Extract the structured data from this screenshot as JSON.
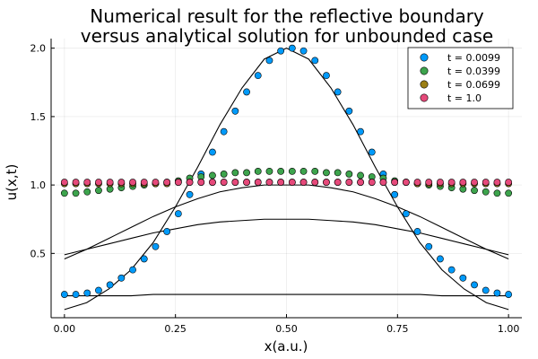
{
  "chart_data": {
    "type": "scatter",
    "title": "Numerical result for the reflective boundary\n versus analytical solution for unbounded case",
    "xlabel": "x(a.u.)",
    "ylabel": "u(x,t)",
    "xlim": [
      -0.03,
      1.03
    ],
    "ylim": [
      0.03,
      2.07
    ],
    "xticks": [
      0.0,
      0.25,
      0.5,
      0.75,
      1.0
    ],
    "xtick_labels": [
      "0.00",
      "0.25",
      "0.50",
      "0.75",
      "1.00"
    ],
    "yticks": [
      0.5,
      1.0,
      1.5,
      2.0
    ],
    "ytick_labels": [
      "0.5",
      "1.0",
      "1.5",
      "2.0"
    ],
    "grid": true,
    "legend_position": "top-right",
    "x": [
      0.0,
      0.02564,
      0.05128,
      0.07692,
      0.10256,
      0.12821,
      0.15385,
      0.17949,
      0.20513,
      0.23077,
      0.25641,
      0.28205,
      0.30769,
      0.33333,
      0.35897,
      0.38462,
      0.41026,
      0.4359,
      0.46154,
      0.48718,
      0.51282,
      0.53846,
      0.5641,
      0.58974,
      0.61538,
      0.64103,
      0.66667,
      0.69231,
      0.71795,
      0.74359,
      0.76923,
      0.79487,
      0.82051,
      0.84615,
      0.87179,
      0.89744,
      0.92308,
      0.94872,
      0.97436,
      1.0
    ],
    "series": [
      {
        "name": "t = 0.0099",
        "color": "#009AFA",
        "values": [
          0.2,
          0.2,
          0.21,
          0.23,
          0.27,
          0.32,
          0.38,
          0.46,
          0.55,
          0.66,
          0.79,
          0.93,
          1.08,
          1.24,
          1.39,
          1.54,
          1.68,
          1.8,
          1.91,
          1.98,
          2.0,
          1.98,
          1.91,
          1.8,
          1.68,
          1.54,
          1.39,
          1.24,
          1.08,
          0.93,
          0.79,
          0.66,
          0.55,
          0.46,
          0.38,
          0.32,
          0.27,
          0.23,
          0.21,
          0.2
        ]
      },
      {
        "name": "t = 0.0399",
        "color": "#3DA44D",
        "values": [
          0.94,
          0.94,
          0.95,
          0.96,
          0.97,
          0.98,
          0.99,
          1.0,
          1.01,
          1.02,
          1.03,
          1.05,
          1.06,
          1.07,
          1.08,
          1.09,
          1.09,
          1.1,
          1.1,
          1.1,
          1.1,
          1.1,
          1.1,
          1.09,
          1.09,
          1.08,
          1.07,
          1.06,
          1.05,
          1.03,
          1.02,
          1.01,
          1.0,
          0.99,
          0.98,
          0.97,
          0.96,
          0.95,
          0.94,
          0.94
        ]
      },
      {
        "name": "t = 0.0699",
        "color": "#9B7F15",
        "values": [
          1.01,
          1.01,
          1.01,
          1.01,
          1.01,
          1.01,
          1.01,
          1.01,
          1.01,
          1.01,
          1.02,
          1.02,
          1.02,
          1.02,
          1.02,
          1.02,
          1.02,
          1.02,
          1.02,
          1.02,
          1.02,
          1.02,
          1.02,
          1.02,
          1.02,
          1.02,
          1.02,
          1.02,
          1.02,
          1.02,
          1.02,
          1.01,
          1.01,
          1.01,
          1.01,
          1.01,
          1.01,
          1.01,
          1.01,
          1.01
        ]
      },
      {
        "name": "t = 1.0",
        "color": "#E5497A",
        "values": [
          1.02,
          1.02,
          1.02,
          1.02,
          1.02,
          1.02,
          1.02,
          1.02,
          1.02,
          1.02,
          1.02,
          1.02,
          1.02,
          1.02,
          1.02,
          1.02,
          1.02,
          1.02,
          1.02,
          1.02,
          1.02,
          1.02,
          1.02,
          1.02,
          1.02,
          1.02,
          1.02,
          1.02,
          1.02,
          1.02,
          1.02,
          1.02,
          1.02,
          1.02,
          1.02,
          1.02,
          1.02,
          1.02,
          1.02,
          1.02
        ]
      }
    ],
    "analytical_curves": {
      "color": "#000000",
      "x": [
        0.0,
        0.05,
        0.1,
        0.15,
        0.2,
        0.25,
        0.3,
        0.35,
        0.4,
        0.45,
        0.5,
        0.55,
        0.6,
        0.65,
        0.7,
        0.75,
        0.8,
        0.85,
        0.9,
        0.95,
        1.0
      ],
      "curves": [
        [
          0.09,
          0.14,
          0.24,
          0.38,
          0.58,
          0.84,
          1.13,
          1.44,
          1.71,
          1.92,
          2.0,
          1.92,
          1.71,
          1.44,
          1.13,
          0.84,
          0.58,
          0.38,
          0.24,
          0.14,
          0.09
        ],
        [
          0.46,
          0.53,
          0.61,
          0.69,
          0.77,
          0.84,
          0.9,
          0.95,
          0.98,
          1.0,
          1.0,
          1.0,
          0.98,
          0.95,
          0.9,
          0.84,
          0.77,
          0.69,
          0.61,
          0.53,
          0.46
        ],
        [
          0.49,
          0.53,
          0.57,
          0.61,
          0.65,
          0.68,
          0.71,
          0.73,
          0.74,
          0.75,
          0.75,
          0.75,
          0.74,
          0.73,
          0.71,
          0.68,
          0.65,
          0.61,
          0.57,
          0.53,
          0.49
        ],
        [
          0.19,
          0.19,
          0.19,
          0.19,
          0.2,
          0.2,
          0.2,
          0.2,
          0.2,
          0.2,
          0.2,
          0.2,
          0.2,
          0.2,
          0.2,
          0.2,
          0.2,
          0.19,
          0.19,
          0.19,
          0.19
        ]
      ]
    }
  }
}
